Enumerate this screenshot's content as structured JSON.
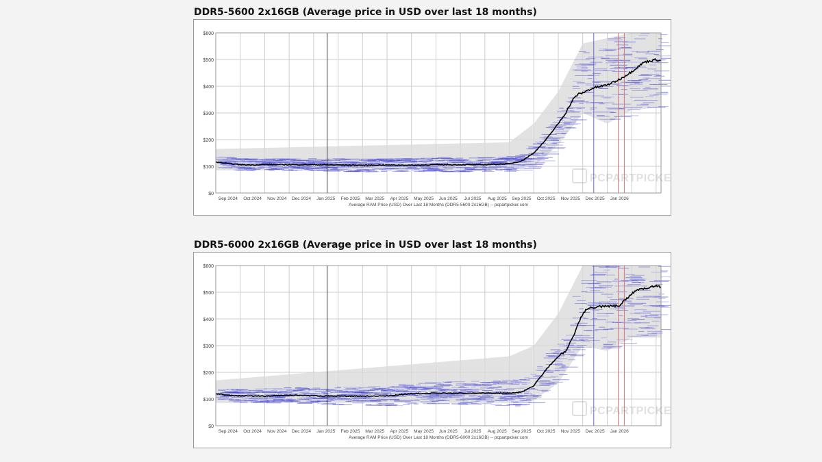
{
  "charts": [
    {
      "title": "DDR5-5600 2x16GB (Average price in USD over last 18 months)",
      "caption": "Average RAM Price (USD) Over Last 18 Months (DDR5-5600 2x16GB) -- pcpartpicker.com",
      "watermark": "PCPARTPICKER"
    },
    {
      "title": "DDR5-6000 2x16GB (Average price in USD over last 18 months)",
      "caption": "Average RAM Price (USD) Over Last 18 Months (DDR5-6000 2x16GB) -- pcpartpicker.com",
      "watermark": "PCPARTPICKER"
    }
  ],
  "colors": {
    "average_line": "#000000",
    "price_range_band": "#d8d8d8",
    "retailer_prices": "#4a4ad8",
    "marker_blue": "#6666cc",
    "marker_red": "#dd7777",
    "marker_dark": "#333333",
    "grid": "#cccccc"
  },
  "chart_data": [
    {
      "type": "line",
      "title": "DDR5-5600 2x16GB (Average price in USD over last 18 months)",
      "xlabel": "Average RAM Price (USD) Over Last 18 Months (DDR5-5600 2x16GB) -- pcpartpicker.com",
      "ylabel": "",
      "ylim": [
        0,
        600
      ],
      "xlim": [
        0,
        18.2
      ],
      "y_ticks": [
        0,
        100,
        200,
        300,
        400,
        500,
        600
      ],
      "y_tick_labels": [
        "$0",
        "$100",
        "$200",
        "$300",
        "$400",
        "$500",
        "$600"
      ],
      "x_tick_labels": [
        "Sep 2024",
        "Oct 2024",
        "Nov 2024",
        "Dec 2024",
        "Jan 2025",
        "Feb 2025",
        "Mar 2025",
        "Apr 2025",
        "May 2025",
        "Jun 2025",
        "Jul 2025",
        "Aug 2025",
        "Sep 2025",
        "Oct 2025",
        "Nov 2025",
        "Dec 2025",
        "Jan 2026"
      ],
      "grid": true,
      "vertical_markers": [
        {
          "x": 4.55,
          "color": "dark"
        },
        {
          "x": 15.45,
          "color": "blue"
        },
        {
          "x": 16.45,
          "color": "red"
        },
        {
          "x": 16.7,
          "color": "red"
        }
      ],
      "series": [
        {
          "name": "Average price",
          "x": [
            0,
            0.5,
            1,
            1.5,
            2,
            3,
            4,
            5,
            6,
            7,
            8,
            9,
            10,
            11,
            12,
            12.5,
            13,
            13.5,
            14,
            14.3,
            14.6,
            14.8,
            15,
            15.2,
            15.5,
            16,
            16.5,
            17,
            17.5,
            18,
            18.2
          ],
          "values": [
            116,
            111,
            106,
            105,
            107,
            106,
            106,
            105,
            104,
            105,
            104,
            106,
            106,
            106,
            110,
            120,
            150,
            200,
            260,
            300,
            350,
            370,
            375,
            385,
            395,
            405,
            425,
            455,
            490,
            500,
            495
          ]
        },
        {
          "name": "Price range (min)",
          "x": [
            0,
            12,
            13,
            14,
            15,
            16,
            17,
            18,
            18.2
          ],
          "values": [
            85,
            88,
            100,
            180,
            300,
            260,
            310,
            320,
            320
          ]
        },
        {
          "name": "Price range (max)",
          "x": [
            0,
            12,
            13,
            14,
            15,
            16,
            17,
            18,
            18.2
          ],
          "values": [
            165,
            190,
            260,
            380,
            560,
            580,
            600,
            600,
            600
          ]
        }
      ]
    },
    {
      "type": "line",
      "title": "DDR5-6000 2x16GB (Average price in USD over last 18 months)",
      "xlabel": "Average RAM Price (USD) Over Last 18 Months (DDR5-6000 2x16GB) -- pcpartpicker.com",
      "ylabel": "",
      "ylim": [
        0,
        600
      ],
      "xlim": [
        0,
        18.2
      ],
      "y_ticks": [
        0,
        100,
        200,
        300,
        400,
        500,
        600
      ],
      "y_tick_labels": [
        "$0",
        "$100",
        "$200",
        "$300",
        "$400",
        "$500",
        "$600"
      ],
      "x_tick_labels": [
        "Sep 2024",
        "Oct 2024",
        "Nov 2024",
        "Dec 2024",
        "Jan 2025",
        "Feb 2025",
        "Mar 2025",
        "Apr 2025",
        "May 2025",
        "Jun 2025",
        "Jul 2025",
        "Aug 2025",
        "Sep 2025",
        "Oct 2025",
        "Nov 2025",
        "Dec 2025",
        "Jan 2026"
      ],
      "grid": true,
      "vertical_markers": [
        {
          "x": 4.55,
          "color": "dark"
        },
        {
          "x": 15.45,
          "color": "blue"
        },
        {
          "x": 16.45,
          "color": "red"
        },
        {
          "x": 16.7,
          "color": "red"
        }
      ],
      "series": [
        {
          "name": "Average price",
          "x": [
            0,
            0.5,
            1,
            2,
            3,
            4,
            5,
            6,
            7,
            8,
            9,
            10,
            11,
            12,
            12.5,
            13,
            13.5,
            14,
            14.3,
            14.6,
            14.8,
            15,
            15.2,
            15.5,
            16,
            16.5,
            17,
            17.3,
            17.6,
            18,
            18.2
          ],
          "values": [
            120,
            114,
            112,
            111,
            114,
            112,
            111,
            111,
            112,
            120,
            122,
            122,
            122,
            122,
            126,
            150,
            210,
            260,
            280,
            330,
            380,
            420,
            440,
            445,
            448,
            450,
            495,
            510,
            515,
            525,
            520
          ]
        },
        {
          "name": "Price range (min)",
          "x": [
            0,
            12,
            13,
            14,
            15,
            16,
            17,
            18,
            18.2
          ],
          "values": [
            85,
            85,
            95,
            160,
            300,
            280,
            330,
            330,
            330
          ]
        },
        {
          "name": "Price range (max)",
          "x": [
            0,
            12,
            13,
            14,
            15,
            16,
            17,
            18,
            18.2
          ],
          "values": [
            170,
            260,
            300,
            420,
            600,
            600,
            600,
            600,
            600
          ]
        }
      ]
    }
  ]
}
